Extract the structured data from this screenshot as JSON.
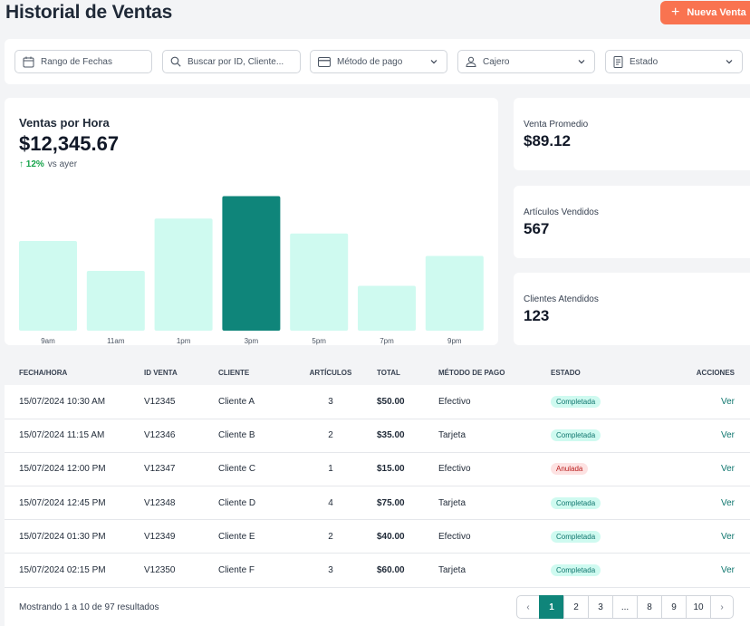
{
  "header": {
    "title": "Historial de Ventas",
    "new_button": "Nueva Venta"
  },
  "filters": {
    "date": "Rango de Fechas",
    "search_placeholder": "Buscar por ID, Cliente...",
    "payment": "Método de pago",
    "cashier": "Cajero",
    "status": "Estado"
  },
  "chart_card": {
    "title": "Ventas por Hora",
    "value": "$12,345.67",
    "change": "↑ 12%",
    "change_note": "vs ayer"
  },
  "chart_data": {
    "type": "bar",
    "title": "Ventas por Hora",
    "categories": [
      "9am",
      "11am",
      "1pm",
      "3pm",
      "5pm",
      "7pm",
      "9pm"
    ],
    "values": [
      60,
      40,
      75,
      90,
      65,
      30,
      50
    ],
    "highlight_index": 3,
    "ylim": [
      0,
      100
    ],
    "colors": {
      "bar": "#cffaf0",
      "highlight": "#0f857a"
    },
    "grid": false
  },
  "stats": [
    {
      "label": "Venta Promedio",
      "value": "$89.12"
    },
    {
      "label": "Artículos Vendidos",
      "value": "567"
    },
    {
      "label": "Clientes Atendidos",
      "value": "123"
    }
  ],
  "table": {
    "headers": [
      "FECHA/HORA",
      "ID VENTA",
      "CLIENTE",
      "ARTÍCULOS",
      "TOTAL",
      "MÉTODO DE PAGO",
      "ESTADO",
      "ACCIONES"
    ],
    "rows": [
      [
        "15/07/2024 10:30 AM",
        "V12345",
        "Cliente A",
        "3",
        "$50.00",
        "Efectivo",
        "Completada",
        "Ver"
      ],
      [
        "15/07/2024 11:15 AM",
        "V12346",
        "Cliente B",
        "2",
        "$35.00",
        "Tarjeta",
        "Completada",
        "Ver"
      ],
      [
        "15/07/2024 12:00 PM",
        "V12347",
        "Cliente C",
        "1",
        "$15.00",
        "Efectivo",
        "Anulada",
        "Ver"
      ],
      [
        "15/07/2024 12:45 PM",
        "V12348",
        "Cliente D",
        "4",
        "$75.00",
        "Tarjeta",
        "Completada",
        "Ver"
      ],
      [
        "15/07/2024 01:30 PM",
        "V12349",
        "Cliente E",
        "2",
        "$40.00",
        "Efectivo",
        "Completada",
        "Ver"
      ],
      [
        "15/07/2024 02:15 PM",
        "V12350",
        "Cliente F",
        "3",
        "$60.00",
        "Tarjeta",
        "Completada",
        "Ver"
      ]
    ]
  },
  "footer": {
    "results": "Mostrando 1 a 10 de 97 resultados"
  },
  "pagination": {
    "pages": [
      "1",
      "2",
      "3",
      "...",
      "8",
      "9",
      "10"
    ],
    "active": "1"
  },
  "colors": {
    "accent": "#f97350",
    "teal": "#0f857a"
  }
}
